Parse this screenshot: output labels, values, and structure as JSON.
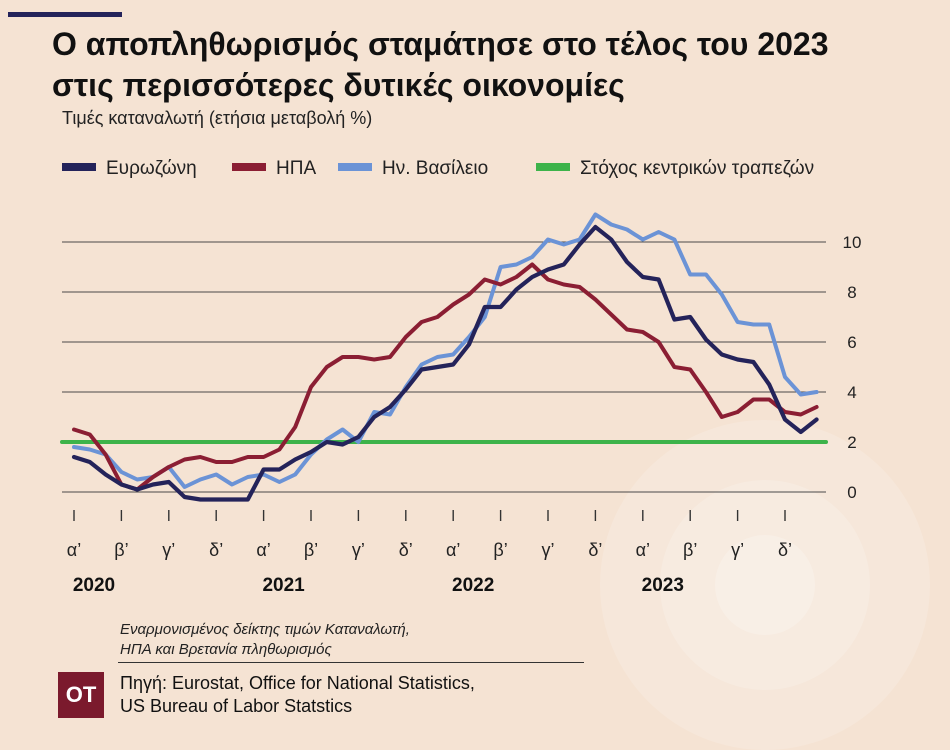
{
  "header": {
    "title_line1": "Ο αποπληθωρισμός σταμάτησε στο τέλος του 2023",
    "title_line2": "στις περισσότερες δυτικές οικονομίες",
    "subtitle": "Τιμές καταναλωτή (ετήσια μεταβολή %)"
  },
  "footer": {
    "note_line1": "Εναρμονισμένος δείκτης τιμών Καταναλωτή,",
    "note_line2": "ΗΠΑ και Βρετανία πληθωρισμός",
    "source_line1": "Πηγή: Eurostat, Office for National Statistics,",
    "source_line2": "US Bureau of Labor Statstics",
    "logo": "OT"
  },
  "chart_data": {
    "type": "line",
    "x_unit": "month",
    "x": [
      "2020-01",
      "2020-02",
      "2020-03",
      "2020-04",
      "2020-05",
      "2020-06",
      "2020-07",
      "2020-08",
      "2020-09",
      "2020-10",
      "2020-11",
      "2020-12",
      "2021-01",
      "2021-02",
      "2021-03",
      "2021-04",
      "2021-05",
      "2021-06",
      "2021-07",
      "2021-08",
      "2021-09",
      "2021-10",
      "2021-11",
      "2021-12",
      "2022-01",
      "2022-02",
      "2022-03",
      "2022-04",
      "2022-05",
      "2022-06",
      "2022-07",
      "2022-08",
      "2022-09",
      "2022-10",
      "2022-11",
      "2022-12",
      "2023-01",
      "2023-02",
      "2023-03",
      "2023-04",
      "2023-05",
      "2023-06",
      "2023-07",
      "2023-08",
      "2023-09",
      "2023-10",
      "2023-11",
      "2023-12"
    ],
    "series": [
      {
        "name": "Ευρωζώνη",
        "color": "#24235a",
        "values": [
          1.4,
          1.2,
          0.7,
          0.3,
          0.1,
          0.3,
          0.4,
          -0.2,
          -0.3,
          -0.3,
          -0.3,
          -0.3,
          0.9,
          0.9,
          1.3,
          1.6,
          2.0,
          1.9,
          2.2,
          3.0,
          3.4,
          4.1,
          4.9,
          5.0,
          5.1,
          5.9,
          7.4,
          7.4,
          8.1,
          8.6,
          8.9,
          9.1,
          9.9,
          10.6,
          10.1,
          9.2,
          8.6,
          8.5,
          6.9,
          7.0,
          6.1,
          5.5,
          5.3,
          5.2,
          4.3,
          2.9,
          2.4,
          2.9
        ]
      },
      {
        "name": "ΗΠΑ",
        "color": "#8b1e33",
        "values": [
          2.5,
          2.3,
          1.5,
          0.3,
          0.1,
          0.6,
          1.0,
          1.3,
          1.4,
          1.2,
          1.2,
          1.4,
          1.4,
          1.7,
          2.6,
          4.2,
          5.0,
          5.4,
          5.4,
          5.3,
          5.4,
          6.2,
          6.8,
          7.0,
          7.5,
          7.9,
          8.5,
          8.3,
          8.6,
          9.1,
          8.5,
          8.3,
          8.2,
          7.7,
          7.1,
          6.5,
          6.4,
          6.0,
          5.0,
          4.9,
          4.0,
          3.0,
          3.2,
          3.7,
          3.7,
          3.2,
          3.1,
          3.4
        ]
      },
      {
        "name": "Ην. Βασίλειο",
        "color": "#6b93d6",
        "values": [
          1.8,
          1.7,
          1.5,
          0.8,
          0.5,
          0.6,
          1.0,
          0.2,
          0.5,
          0.7,
          0.3,
          0.6,
          0.7,
          0.4,
          0.7,
          1.5,
          2.1,
          2.5,
          2.0,
          3.2,
          3.1,
          4.2,
          5.1,
          5.4,
          5.5,
          6.2,
          7.0,
          9.0,
          9.1,
          9.4,
          10.1,
          9.9,
          10.1,
          11.1,
          10.7,
          10.5,
          10.1,
          10.4,
          10.1,
          8.7,
          8.7,
          7.9,
          6.8,
          6.7,
          6.7,
          4.6,
          3.9,
          4.0
        ]
      },
      {
        "name": "Στόχος κεντρικών τραπεζών",
        "color": "#3db34a",
        "values": [
          2,
          2,
          2,
          2,
          2,
          2,
          2,
          2,
          2,
          2,
          2,
          2,
          2,
          2,
          2,
          2,
          2,
          2,
          2,
          2,
          2,
          2,
          2,
          2,
          2,
          2,
          2,
          2,
          2,
          2,
          2,
          2,
          2,
          2,
          2,
          2,
          2,
          2,
          2,
          2,
          2,
          2,
          2,
          2,
          2,
          2,
          2,
          2
        ]
      }
    ],
    "quarter_labels": [
      "α’",
      "β’",
      "γ’",
      "δ’",
      "α’",
      "β’",
      "γ’",
      "δ’",
      "α’",
      "β’",
      "γ’",
      "δ’",
      "α’",
      "β’",
      "γ’",
      "δ’"
    ],
    "year_labels": [
      "2020",
      "2021",
      "2022",
      "2023"
    ],
    "y_ticks": [
      0,
      2,
      4,
      6,
      8,
      10
    ],
    "ylim": [
      -0.6,
      11.6
    ],
    "y_axis_side": "right",
    "grid": "horizontal",
    "legend": "top"
  }
}
